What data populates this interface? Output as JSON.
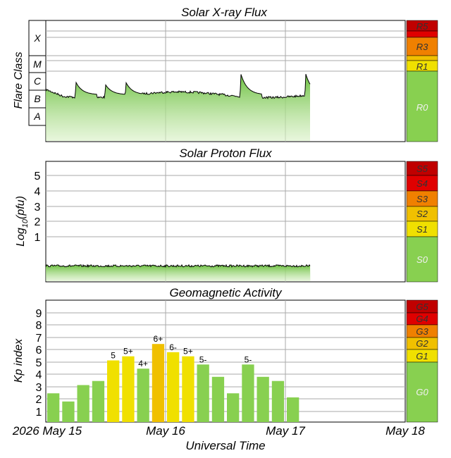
{
  "xray": {
    "title": "Solar X-ray Flux",
    "ylabel": "Flare Class",
    "class_labels": [
      "X",
      "M",
      "C",
      "B",
      "A"
    ],
    "scale_labels": [
      "R5",
      "R3",
      "R1",
      "R0"
    ],
    "colors": {
      "R5": "#c00000",
      "R3": "#f08000",
      "R1": "#f0e000",
      "R0": "#88d050"
    }
  },
  "proton": {
    "title": "Solar Proton Flux",
    "ylabel_main": "Log",
    "ylabel_sub": "10",
    "ylabel_tail": "(pfu)",
    "ticks": [
      "5",
      "4",
      "3",
      "2",
      "1"
    ],
    "scale_labels": [
      "S5",
      "S4",
      "S3",
      "S2",
      "S1",
      "S0"
    ],
    "colors": {
      "S5": "#c00000",
      "S4": "#e00000",
      "S3": "#f08000",
      "S2": "#f0c000",
      "S1": "#f0e000",
      "S0": "#88d050"
    }
  },
  "geomag": {
    "title": "Geomagnetic Activity",
    "ylabel": "Kp index",
    "ticks": [
      "9",
      "8",
      "7",
      "6",
      "5",
      "4",
      "3",
      "2",
      "1"
    ],
    "scale_labels": [
      "G5",
      "G4",
      "G3",
      "G2",
      "G1",
      "G0"
    ],
    "colors": {
      "G5": "#c00000",
      "G4": "#e00000",
      "G3": "#f08000",
      "G2": "#f0c000",
      "G1": "#f0e000",
      "G0": "#88d050"
    }
  },
  "x_axis": {
    "label": "Universal Time",
    "ticks": [
      "2026 May 15",
      "May 16",
      "May 17",
      "May 18"
    ]
  },
  "chart_data": [
    {
      "type": "line",
      "title": "Solar X-ray Flux",
      "ylabel": "Flare Class",
      "y_scale": "log",
      "y_categories": [
        "A",
        "B",
        "C",
        "M",
        "X"
      ],
      "x_range": [
        "2026 May 15",
        "May 18"
      ],
      "data_end": "May 17 ~05:00",
      "baseline_class": "B8",
      "peaks": [
        {
          "time": "May 15 ~06:00",
          "class": "C3"
        },
        {
          "time": "May 15 ~12:00",
          "class": "C2"
        },
        {
          "time": "May 15 ~16:00",
          "class": "C3"
        },
        {
          "time": "May 16 ~15:00",
          "class": "M1"
        },
        {
          "time": "May 17 ~04:00",
          "class": "M1"
        }
      ]
    },
    {
      "type": "line",
      "title": "Solar Proton Flux",
      "ylabel": "Log10(pfu)",
      "ylim": [
        -1.5,
        6
      ],
      "data_end": "May 17 ~05:00",
      "level_approx": -0.9
    },
    {
      "type": "bar",
      "title": "Geomagnetic Activity",
      "ylabel": "Kp index",
      "ylim": [
        0,
        10
      ],
      "interval": "3 hours",
      "values": [
        2.33,
        1.67,
        3.0,
        3.33,
        5.0,
        5.33,
        4.33,
        6.33,
        5.67,
        5.33,
        4.67,
        3.67,
        2.33,
        4.67,
        3.67,
        3.33,
        2.0
      ],
      "labels": [
        "",
        "",
        "",
        "",
        "5",
        "5+",
        "4+",
        "6+",
        "6-",
        "5+",
        "5-",
        "",
        "",
        "5-",
        "",
        "",
        ""
      ],
      "colors": {
        "quiet": "#88d050",
        "G1": "#f0e000",
        "G2": "#f0c000"
      }
    }
  ]
}
